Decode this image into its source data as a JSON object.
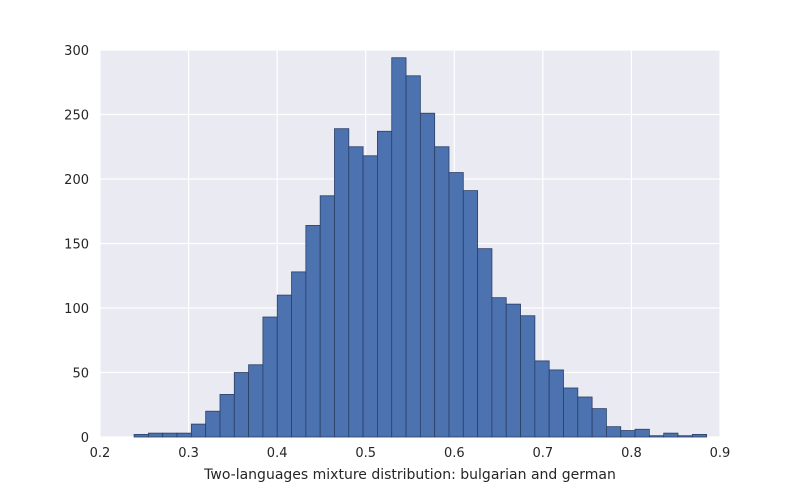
{
  "chart_data": {
    "type": "bar",
    "histogram": true,
    "title": "",
    "xlabel": "Two-languages mixture distribution: bulgarian and german",
    "ylabel": "",
    "xlim": [
      0.2,
      0.9
    ],
    "ylim": [
      0,
      300
    ],
    "grid": true,
    "xticks": [
      0.2,
      0.3,
      0.4,
      0.5,
      0.6,
      0.7,
      0.8,
      0.9
    ],
    "xtick_labels": [
      "0.2",
      "0.3",
      "0.4",
      "0.5",
      "0.6",
      "0.7",
      "0.8",
      "0.9"
    ],
    "yticks": [
      0,
      50,
      100,
      150,
      200,
      250,
      300
    ],
    "ytick_labels": [
      "0",
      "50",
      "100",
      "150",
      "200",
      "250",
      "300"
    ],
    "bin_start": 0.2385,
    "bin_width": 0.01616,
    "values": [
      2,
      3,
      3,
      3,
      10,
      20,
      33,
      50,
      56,
      93,
      110,
      128,
      164,
      187,
      239,
      225,
      218,
      237,
      294,
      280,
      251,
      225,
      205,
      191,
      146,
      108,
      103,
      94,
      59,
      52,
      38,
      31,
      22,
      8,
      5,
      6,
      1,
      3,
      1,
      2
    ],
    "colors": {
      "bar": "#4c72b0",
      "bar_edge": "#2b3f66",
      "plot_bg": "#eaeaf2",
      "grid": "#ffffff",
      "text": "#262626"
    }
  }
}
